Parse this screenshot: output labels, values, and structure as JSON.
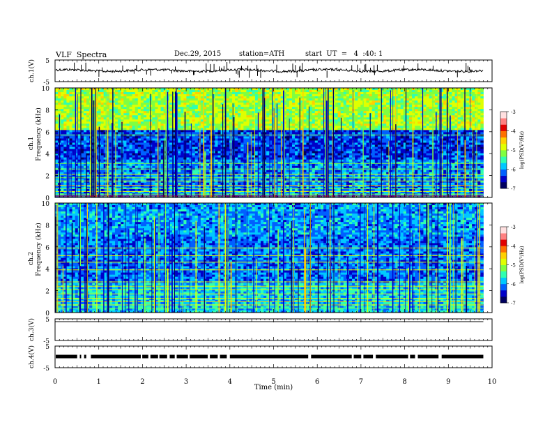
{
  "header": {
    "title": "VLF  Spectra",
    "date": "Dec.29, 2015",
    "station": "station=ATH",
    "start": "start  UT  =   4  :40: 1"
  },
  "chart_data": {
    "type": "heatmap",
    "title": "VLF  Spectra",
    "x": {
      "label": "Time  (min)",
      "range": [
        0,
        10
      ],
      "ticks": [
        "0",
        "1",
        "2",
        "3",
        "4",
        "5",
        "6",
        "7",
        "8",
        "9",
        "10"
      ],
      "data_end": 9.8
    },
    "panels": [
      {
        "id": "ch1-waveform",
        "type": "line",
        "ylabel": "ch.1(V)",
        "yticks": [
          "5",
          "-5"
        ],
        "ylim": [
          -5,
          5
        ]
      },
      {
        "id": "ch1-spectrogram",
        "type": "heatmap",
        "ylabel_top": "ch.1",
        "ylabel": "Frequency  (kHz)",
        "ylim": [
          0,
          10
        ],
        "yticks": [
          "0",
          "2",
          "4",
          "6",
          "8",
          "10"
        ]
      },
      {
        "id": "ch2-spectrogram",
        "type": "heatmap",
        "ylabel_top": "ch.2",
        "ylabel": "Frequency  (kHz)",
        "ylim": [
          0,
          10
        ],
        "yticks": [
          "0",
          "2",
          "4",
          "6",
          "8",
          "10"
        ]
      },
      {
        "id": "ch3-waveform",
        "type": "line",
        "ylabel": "ch.3(V)",
        "yticks": [
          "5",
          "-5"
        ],
        "ylim": [
          -5,
          5
        ]
      },
      {
        "id": "ch4-waveform",
        "type": "line",
        "ylabel": "ch.4(V)",
        "yticks": [
          "5",
          "-5"
        ],
        "ylim": [
          -5,
          5
        ]
      }
    ],
    "colorbar": {
      "label": "log(PSD(V²/Hz)",
      "ticks": [
        "-3",
        "-4",
        "-5",
        "-6",
        "-7"
      ],
      "range": [
        -7,
        -3
      ],
      "colors": [
        "#000060",
        "#0000c8",
        "#0060ff",
        "#00c8ff",
        "#30ffb0",
        "#80ff40",
        "#e0ff00",
        "#ffd000",
        "#ff7000",
        "#e00000",
        "#ff8080",
        "#ffe0e0"
      ]
    }
  }
}
